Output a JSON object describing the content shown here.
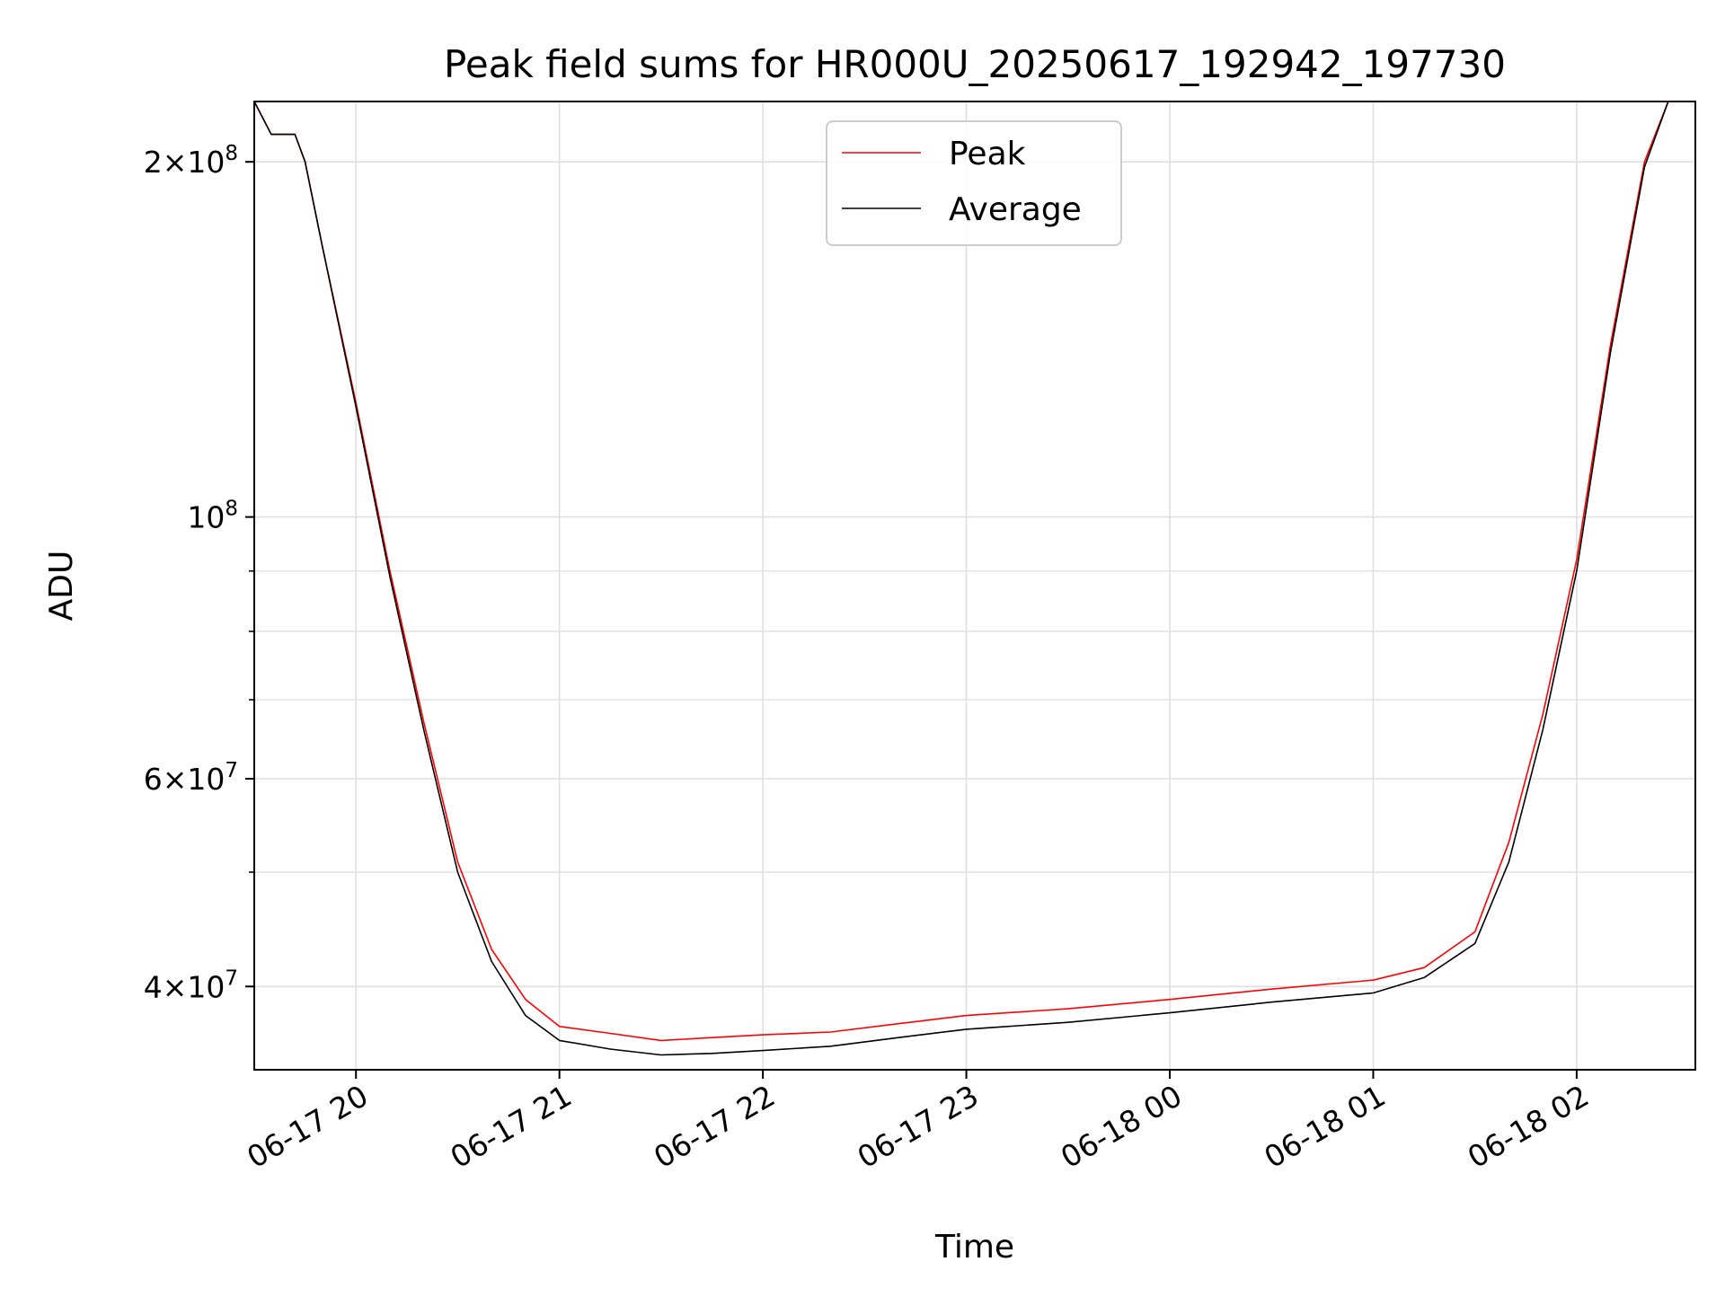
{
  "chart_data": {
    "type": "line",
    "title": "Peak field sums for HR000U_20250617_192942_197730",
    "xlabel": "Time",
    "ylabel": "ADU",
    "y_scale": "log",
    "ylim": [
      34000000,
      225000000
    ],
    "xlim": [
      "2025-06-17 19:30",
      "2025-06-18 02:35"
    ],
    "grid": true,
    "legend_position": "top-center",
    "x_ticks": [
      {
        "value": "2025-06-17 20:00",
        "label": "06-17 20"
      },
      {
        "value": "2025-06-17 21:00",
        "label": "06-17 21"
      },
      {
        "value": "2025-06-17 22:00",
        "label": "06-17 22"
      },
      {
        "value": "2025-06-17 23:00",
        "label": "06-17 23"
      },
      {
        "value": "2025-06-18 00:00",
        "label": "06-18 00"
      },
      {
        "value": "2025-06-18 01:00",
        "label": "06-18 01"
      },
      {
        "value": "2025-06-18 02:00",
        "label": "06-18 02"
      }
    ],
    "y_ticks": [
      {
        "value": 200000000,
        "base": "2",
        "exp": "8"
      },
      {
        "value": 100000000,
        "base": "",
        "exp": "8"
      },
      {
        "value": 60000000,
        "base": "6",
        "exp": "7"
      },
      {
        "value": 40000000,
        "base": "4",
        "exp": "7"
      }
    ],
    "y_minor_ticks": [
      50000000,
      70000000,
      80000000,
      90000000
    ],
    "series": [
      {
        "name": "Peak",
        "color": "#ff0000",
        "points": [
          [
            "2025-06-17 19:30",
            225000000
          ],
          [
            "2025-06-17 19:35",
            211000000
          ],
          [
            "2025-06-17 19:42",
            211000000
          ],
          [
            "2025-06-17 19:45",
            200000000
          ],
          [
            "2025-06-17 19:50",
            170000000
          ],
          [
            "2025-06-17 20:00",
            125000000
          ],
          [
            "2025-06-17 20:10",
            90000000
          ],
          [
            "2025-06-17 20:20",
            67000000
          ],
          [
            "2025-06-17 20:30",
            51000000
          ],
          [
            "2025-06-17 20:40",
            43000000
          ],
          [
            "2025-06-17 20:50",
            39000000
          ],
          [
            "2025-06-17 21:00",
            37000000
          ],
          [
            "2025-06-17 21:15",
            36500000
          ],
          [
            "2025-06-17 21:30",
            36000000
          ],
          [
            "2025-06-17 21:45",
            36200000
          ],
          [
            "2025-06-17 22:00",
            36400000
          ],
          [
            "2025-06-17 22:20",
            36600000
          ],
          [
            "2025-06-17 22:40",
            37200000
          ],
          [
            "2025-06-17 23:00",
            37800000
          ],
          [
            "2025-06-17 23:30",
            38300000
          ],
          [
            "2025-06-18 00:00",
            39000000
          ],
          [
            "2025-06-18 00:30",
            39800000
          ],
          [
            "2025-06-18 01:00",
            40500000
          ],
          [
            "2025-06-18 01:15",
            41500000
          ],
          [
            "2025-06-18 01:30",
            44500000
          ],
          [
            "2025-06-18 01:40",
            53000000
          ],
          [
            "2025-06-18 01:50",
            68000000
          ],
          [
            "2025-06-18 02:00",
            92000000
          ],
          [
            "2025-06-18 02:10",
            140000000
          ],
          [
            "2025-06-18 02:20",
            200000000
          ],
          [
            "2025-06-18 02:27",
            225000000
          ]
        ]
      },
      {
        "name": "Average",
        "color": "#000000",
        "points": [
          [
            "2025-06-17 19:30",
            225000000
          ],
          [
            "2025-06-17 19:35",
            211000000
          ],
          [
            "2025-06-17 19:42",
            211000000
          ],
          [
            "2025-06-17 19:45",
            200000000
          ],
          [
            "2025-06-17 19:50",
            170000000
          ],
          [
            "2025-06-17 20:00",
            124000000
          ],
          [
            "2025-06-17 20:10",
            89000000
          ],
          [
            "2025-06-17 20:20",
            66000000
          ],
          [
            "2025-06-17 20:30",
            50000000
          ],
          [
            "2025-06-17 20:40",
            42000000
          ],
          [
            "2025-06-17 20:50",
            37800000
          ],
          [
            "2025-06-17 21:00",
            36000000
          ],
          [
            "2025-06-17 21:15",
            35400000
          ],
          [
            "2025-06-17 21:30",
            35000000
          ],
          [
            "2025-06-17 21:45",
            35100000
          ],
          [
            "2025-06-17 22:00",
            35300000
          ],
          [
            "2025-06-17 22:20",
            35600000
          ],
          [
            "2025-06-17 22:40",
            36200000
          ],
          [
            "2025-06-17 23:00",
            36800000
          ],
          [
            "2025-06-17 23:30",
            37300000
          ],
          [
            "2025-06-18 00:00",
            38000000
          ],
          [
            "2025-06-18 00:30",
            38800000
          ],
          [
            "2025-06-18 01:00",
            39500000
          ],
          [
            "2025-06-18 01:15",
            40700000
          ],
          [
            "2025-06-18 01:30",
            43500000
          ],
          [
            "2025-06-18 01:40",
            51000000
          ],
          [
            "2025-06-18 01:50",
            66000000
          ],
          [
            "2025-06-18 02:00",
            90000000
          ],
          [
            "2025-06-18 02:10",
            138000000
          ],
          [
            "2025-06-18 02:20",
            198000000
          ],
          [
            "2025-06-18 02:27",
            225000000
          ]
        ]
      }
    ]
  }
}
